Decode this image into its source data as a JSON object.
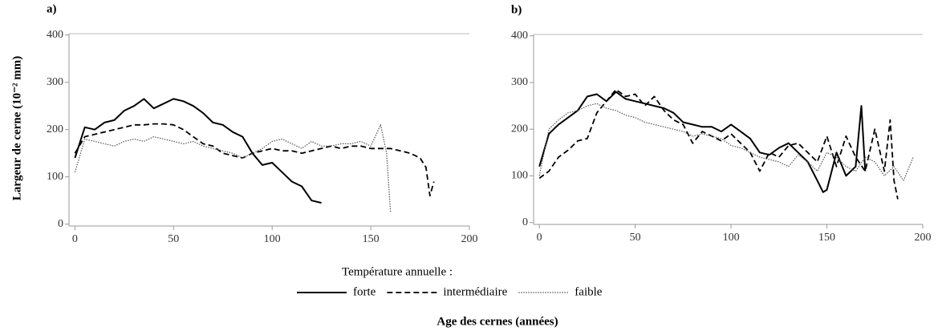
{
  "ylabel": "Largeur de cerne (10⁻² mm)",
  "xlabel": "Age des cernes (années)",
  "legend_title": "Température annuelle :",
  "chart_data": [
    {
      "type": "line",
      "label": "a)",
      "xlim": [
        -3,
        200
      ],
      "ylim": [
        -4,
        403
      ],
      "xticks": [
        0,
        50,
        100,
        150,
        200
      ],
      "yticks": [
        0,
        100,
        200,
        300,
        400
      ],
      "series": [
        {
          "name": "forte",
          "color": "#000000",
          "style": "solid",
          "x": [
            0,
            5,
            10,
            15,
            20,
            25,
            30,
            35,
            40,
            45,
            50,
            55,
            60,
            65,
            70,
            75,
            80,
            85,
            90,
            95,
            100,
            105,
            110,
            115,
            120,
            125
          ],
          "values": [
            140,
            205,
            200,
            215,
            220,
            240,
            250,
            265,
            245,
            255,
            265,
            260,
            250,
            235,
            215,
            210,
            195,
            185,
            150,
            125,
            130,
            110,
            90,
            80,
            50,
            45
          ]
        },
        {
          "name": "intermédiaire",
          "color": "#000000",
          "style": "dashed",
          "x": [
            0,
            5,
            10,
            15,
            20,
            25,
            30,
            35,
            40,
            45,
            50,
            55,
            60,
            65,
            70,
            75,
            80,
            85,
            90,
            95,
            100,
            105,
            110,
            115,
            120,
            125,
            130,
            135,
            140,
            145,
            150,
            155,
            160,
            165,
            170,
            175,
            178,
            180,
            182
          ],
          "values": [
            150,
            185,
            190,
            195,
            200,
            205,
            210,
            210,
            212,
            212,
            210,
            200,
            185,
            170,
            165,
            150,
            145,
            140,
            150,
            155,
            160,
            155,
            155,
            150,
            155,
            160,
            165,
            160,
            165,
            165,
            160,
            160,
            160,
            155,
            150,
            140,
            120,
            60,
            90
          ]
        },
        {
          "name": "faible",
          "color": "#555555",
          "style": "dotted",
          "x": [
            0,
            5,
            10,
            15,
            20,
            25,
            30,
            35,
            40,
            45,
            50,
            55,
            60,
            65,
            70,
            75,
            80,
            85,
            90,
            95,
            100,
            105,
            110,
            115,
            120,
            125,
            130,
            135,
            140,
            145,
            150,
            155,
            158,
            160
          ],
          "values": [
            110,
            180,
            175,
            170,
            165,
            175,
            180,
            175,
            185,
            180,
            175,
            170,
            175,
            165,
            160,
            155,
            150,
            140,
            150,
            160,
            175,
            180,
            170,
            160,
            175,
            165,
            165,
            170,
            170,
            175,
            165,
            210,
            150,
            25
          ]
        }
      ]
    },
    {
      "type": "line",
      "label": "b)",
      "xlim": [
        -3,
        200
      ],
      "ylim": [
        -4,
        403
      ],
      "xticks": [
        0,
        50,
        100,
        150,
        200
      ],
      "yticks": [
        0,
        100,
        200,
        300,
        400
      ],
      "series": [
        {
          "color": "#000000",
          "style": "solid",
          "x": [
            0,
            5,
            10,
            15,
            20,
            25,
            30,
            35,
            40,
            45,
            50,
            55,
            60,
            65,
            70,
            75,
            80,
            85,
            90,
            95,
            100,
            105,
            110,
            115,
            120,
            125,
            130,
            135,
            140,
            145,
            148,
            150,
            155,
            160,
            165,
            168,
            170
          ],
          "values": [
            120,
            190,
            210,
            225,
            240,
            270,
            275,
            260,
            280,
            265,
            260,
            255,
            250,
            245,
            235,
            215,
            210,
            205,
            205,
            195,
            210,
            195,
            180,
            150,
            145,
            160,
            170,
            150,
            130,
            90,
            65,
            70,
            150,
            100,
            120,
            250,
            110
          ]
        },
        {
          "color": "#000000",
          "style": "dashed",
          "x": [
            0,
            5,
            10,
            15,
            20,
            25,
            30,
            35,
            40,
            45,
            50,
            55,
            60,
            65,
            70,
            75,
            80,
            85,
            90,
            95,
            100,
            105,
            110,
            115,
            120,
            125,
            130,
            135,
            140,
            145,
            150,
            155,
            160,
            165,
            170,
            175,
            180,
            183,
            185,
            187
          ],
          "values": [
            95,
            110,
            140,
            155,
            175,
            180,
            235,
            260,
            285,
            270,
            275,
            250,
            270,
            240,
            220,
            210,
            170,
            195,
            185,
            175,
            190,
            170,
            150,
            110,
            150,
            140,
            165,
            170,
            150,
            130,
            185,
            120,
            185,
            140,
            110,
            200,
            110,
            220,
            90,
            50
          ]
        },
        {
          "color": "#555555",
          "style": "dotted",
          "x": [
            0,
            5,
            10,
            15,
            20,
            25,
            30,
            35,
            40,
            45,
            50,
            55,
            60,
            65,
            70,
            75,
            80,
            85,
            90,
            95,
            100,
            105,
            110,
            115,
            120,
            125,
            130,
            135,
            140,
            145,
            150,
            155,
            160,
            165,
            170,
            175,
            180,
            185,
            190,
            195
          ],
          "values": [
            100,
            200,
            220,
            235,
            240,
            250,
            255,
            245,
            240,
            230,
            225,
            215,
            210,
            205,
            200,
            195,
            185,
            190,
            185,
            180,
            165,
            160,
            150,
            140,
            135,
            130,
            120,
            145,
            130,
            110,
            150,
            140,
            120,
            110,
            140,
            130,
            100,
            120,
            90,
            140
          ]
        }
      ]
    }
  ]
}
